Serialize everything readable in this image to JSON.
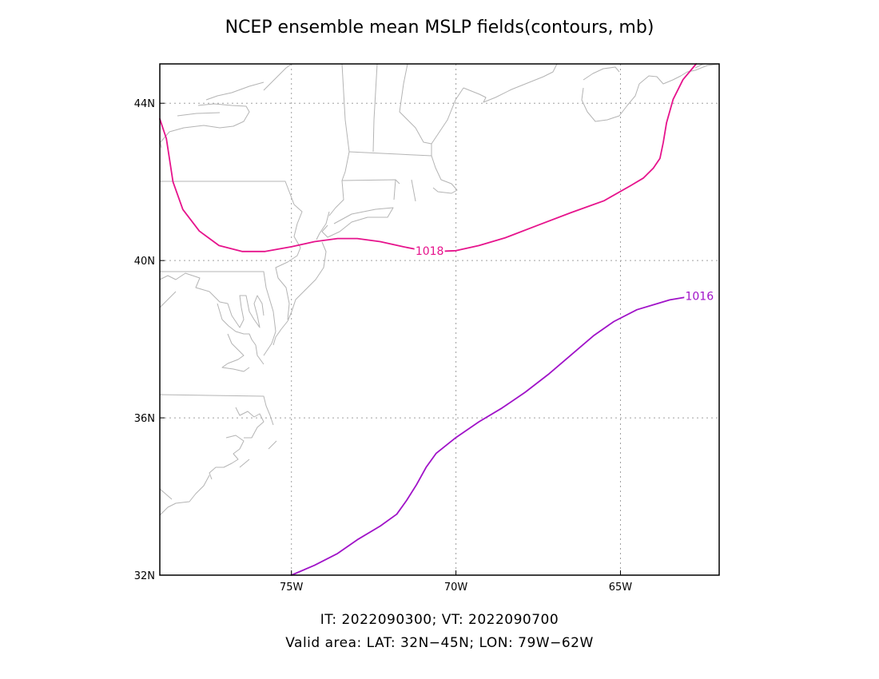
{
  "title": "NCEP ensemble mean MSLP fields(contours, mb)",
  "caption": {
    "line1": "IT: 2022090300; VT: 2022090700",
    "line2": "Valid area: LAT: 32N−45N; LON: 79W−62W"
  },
  "chart_data": {
    "type": "contour-map",
    "lon_range": [
      -79,
      -62
    ],
    "lat_range": [
      32,
      45
    ],
    "grid": true,
    "x_ticks": [
      {
        "value": -75,
        "label": "75W"
      },
      {
        "value": -70,
        "label": "70W"
      },
      {
        "value": -65,
        "label": "65W"
      }
    ],
    "y_ticks": [
      {
        "value": 32,
        "label": "32N"
      },
      {
        "value": 36,
        "label": "36N"
      },
      {
        "value": 40,
        "label": "40N"
      },
      {
        "value": 44,
        "label": "44N"
      }
    ],
    "colors": {
      "frame": "#000000",
      "grid": "#a0a0a0",
      "coast": "#b4b4b4",
      "c1018": "#e6138c",
      "c1016": "#a012c8"
    },
    "contours": [
      {
        "level": "1018",
        "color": "#e6138c",
        "label_at": [
          -70.8,
          40.25
        ],
        "points": [
          [
            -79.0,
            43.6
          ],
          [
            -78.8,
            43.1
          ],
          [
            -78.6,
            42.0
          ],
          [
            -78.3,
            41.3
          ],
          [
            -77.8,
            40.75
          ],
          [
            -77.2,
            40.38
          ],
          [
            -76.5,
            40.23
          ],
          [
            -75.8,
            40.23
          ],
          [
            -75.0,
            40.35
          ],
          [
            -74.3,
            40.48
          ],
          [
            -73.6,
            40.56
          ],
          [
            -73.0,
            40.56
          ],
          [
            -72.3,
            40.48
          ],
          [
            -71.6,
            40.35
          ],
          [
            -71.0,
            40.25
          ],
          [
            -70.6,
            40.23
          ],
          [
            -70.0,
            40.25
          ],
          [
            -69.3,
            40.38
          ],
          [
            -68.5,
            40.58
          ],
          [
            -67.5,
            40.9
          ],
          [
            -66.5,
            41.22
          ],
          [
            -65.5,
            41.52
          ],
          [
            -64.7,
            41.9
          ],
          [
            -64.3,
            42.1
          ],
          [
            -64.0,
            42.35
          ],
          [
            -63.8,
            42.6
          ],
          [
            -63.7,
            43.0
          ],
          [
            -63.6,
            43.5
          ],
          [
            -63.4,
            44.1
          ],
          [
            -63.1,
            44.6
          ],
          [
            -62.7,
            45.0
          ]
        ]
      },
      {
        "level": "1016",
        "color": "#a012c8",
        "label_at": [
          -62.6,
          39.1
        ],
        "points": [
          [
            -75.0,
            32.0
          ],
          [
            -74.3,
            32.25
          ],
          [
            -73.6,
            32.55
          ],
          [
            -73.0,
            32.9
          ],
          [
            -72.3,
            33.25
          ],
          [
            -71.8,
            33.55
          ],
          [
            -71.5,
            33.9
          ],
          [
            -71.2,
            34.3
          ],
          [
            -70.9,
            34.75
          ],
          [
            -70.6,
            35.1
          ],
          [
            -70.0,
            35.5
          ],
          [
            -69.3,
            35.9
          ],
          [
            -68.6,
            36.25
          ],
          [
            -67.9,
            36.65
          ],
          [
            -67.2,
            37.1
          ],
          [
            -66.5,
            37.6
          ],
          [
            -65.8,
            38.1
          ],
          [
            -65.2,
            38.45
          ],
          [
            -64.5,
            38.75
          ],
          [
            -63.5,
            39.0
          ],
          [
            -62.8,
            39.1
          ]
        ]
      }
    ]
  }
}
